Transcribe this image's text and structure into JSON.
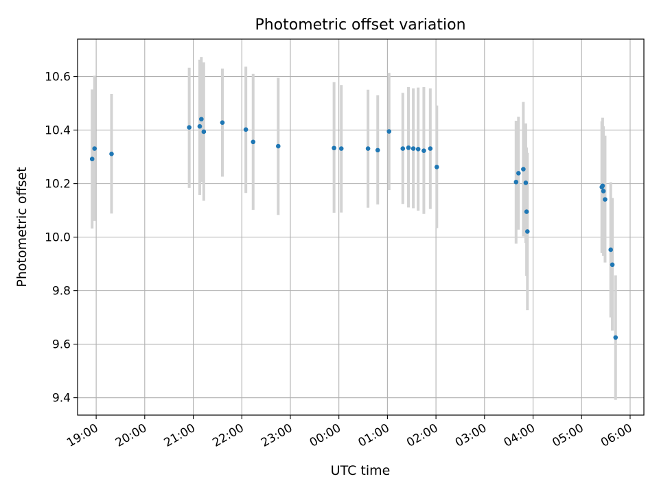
{
  "chart_data": {
    "type": "scatter",
    "title": "Photometric offset variation",
    "xlabel": "UTC time",
    "ylabel": "Photometric offset",
    "x_ticks": [
      "19:00",
      "20:00",
      "21:00",
      "22:00",
      "23:00",
      "00:00",
      "01:00",
      "02:00",
      "03:00",
      "04:00",
      "05:00",
      "06:00"
    ],
    "y_ticks": [
      "9.4",
      "9.6",
      "9.8",
      "10.0",
      "10.2",
      "10.4",
      "10.6"
    ],
    "xlim": [
      "18:37",
      "06:17"
    ],
    "ylim": [
      9.335,
      10.74
    ],
    "grid": true,
    "colors": {
      "points": "#1f77b4",
      "errorbars": "#d3d3d3",
      "grid": "#b0b0b0"
    },
    "points": [
      {
        "t": "18:55",
        "y": 10.292,
        "lo": 10.032,
        "hi": 10.552
      },
      {
        "t": "18:58",
        "y": 10.331,
        "lo": 10.061,
        "hi": 10.603
      },
      {
        "t": "19:19",
        "y": 10.311,
        "lo": 10.088,
        "hi": 10.535
      },
      {
        "t": "20:55",
        "y": 10.41,
        "lo": 10.184,
        "hi": 10.633
      },
      {
        "t": "21:08",
        "y": 10.414,
        "lo": 10.158,
        "hi": 10.663
      },
      {
        "t": "21:10",
        "y": 10.441,
        "lo": 10.205,
        "hi": 10.673
      },
      {
        "t": "21:13",
        "y": 10.394,
        "lo": 10.136,
        "hi": 10.653
      },
      {
        "t": "21:36",
        "y": 10.428,
        "lo": 10.226,
        "hi": 10.63
      },
      {
        "t": "22:05",
        "y": 10.402,
        "lo": 10.165,
        "hi": 10.637
      },
      {
        "t": "22:14",
        "y": 10.356,
        "lo": 10.102,
        "hi": 10.61
      },
      {
        "t": "22:45",
        "y": 10.34,
        "lo": 10.083,
        "hi": 10.595
      },
      {
        "t": "23:54",
        "y": 10.333,
        "lo": 10.091,
        "hi": 10.579
      },
      {
        "t": "00:03",
        "y": 10.331,
        "lo": 10.092,
        "hi": 10.568
      },
      {
        "t": "00:36",
        "y": 10.331,
        "lo": 10.11,
        "hi": 10.551
      },
      {
        "t": "00:48",
        "y": 10.325,
        "lo": 10.122,
        "hi": 10.53
      },
      {
        "t": "01:02",
        "y": 10.395,
        "lo": 10.176,
        "hi": 10.614
      },
      {
        "t": "01:19",
        "y": 10.331,
        "lo": 10.124,
        "hi": 10.539
      },
      {
        "t": "01:26",
        "y": 10.334,
        "lo": 10.111,
        "hi": 10.561
      },
      {
        "t": "01:32",
        "y": 10.331,
        "lo": 10.108,
        "hi": 10.556
      },
      {
        "t": "01:38",
        "y": 10.329,
        "lo": 10.099,
        "hi": 10.559
      },
      {
        "t": "01:45",
        "y": 10.323,
        "lo": 10.087,
        "hi": 10.561
      },
      {
        "t": "01:53",
        "y": 10.331,
        "lo": 10.105,
        "hi": 10.556
      },
      {
        "t": "02:01",
        "y": 10.262,
        "lo": 10.034,
        "hi": 10.492
      },
      {
        "t": "03:39",
        "y": 10.206,
        "lo": 9.976,
        "hi": 10.435
      },
      {
        "t": "03:42",
        "y": 10.239,
        "lo": 10.028,
        "hi": 10.45
      },
      {
        "t": "03:48",
        "y": 10.254,
        "lo": 10.003,
        "hi": 10.505
      },
      {
        "t": "03:51",
        "y": 10.203,
        "lo": 9.978,
        "hi": 10.425
      },
      {
        "t": "03:52",
        "y": 10.095,
        "lo": 9.855,
        "hi": 10.335
      },
      {
        "t": "03:53",
        "y": 10.021,
        "lo": 9.727,
        "hi": 10.315
      },
      {
        "t": "05:25",
        "y": 10.187,
        "lo": 9.941,
        "hi": 10.433
      },
      {
        "t": "05:26",
        "y": 10.192,
        "lo": 9.94,
        "hi": 10.446
      },
      {
        "t": "05:27",
        "y": 10.172,
        "lo": 9.93,
        "hi": 10.414
      },
      {
        "t": "05:29",
        "y": 10.141,
        "lo": 9.905,
        "hi": 10.379
      },
      {
        "t": "05:36",
        "y": 9.953,
        "lo": 9.7,
        "hi": 10.205
      },
      {
        "t": "05:38",
        "y": 9.897,
        "lo": 9.651,
        "hi": 10.146
      },
      {
        "t": "05:42",
        "y": 9.625,
        "lo": 9.392,
        "hi": 9.857
      }
    ]
  }
}
